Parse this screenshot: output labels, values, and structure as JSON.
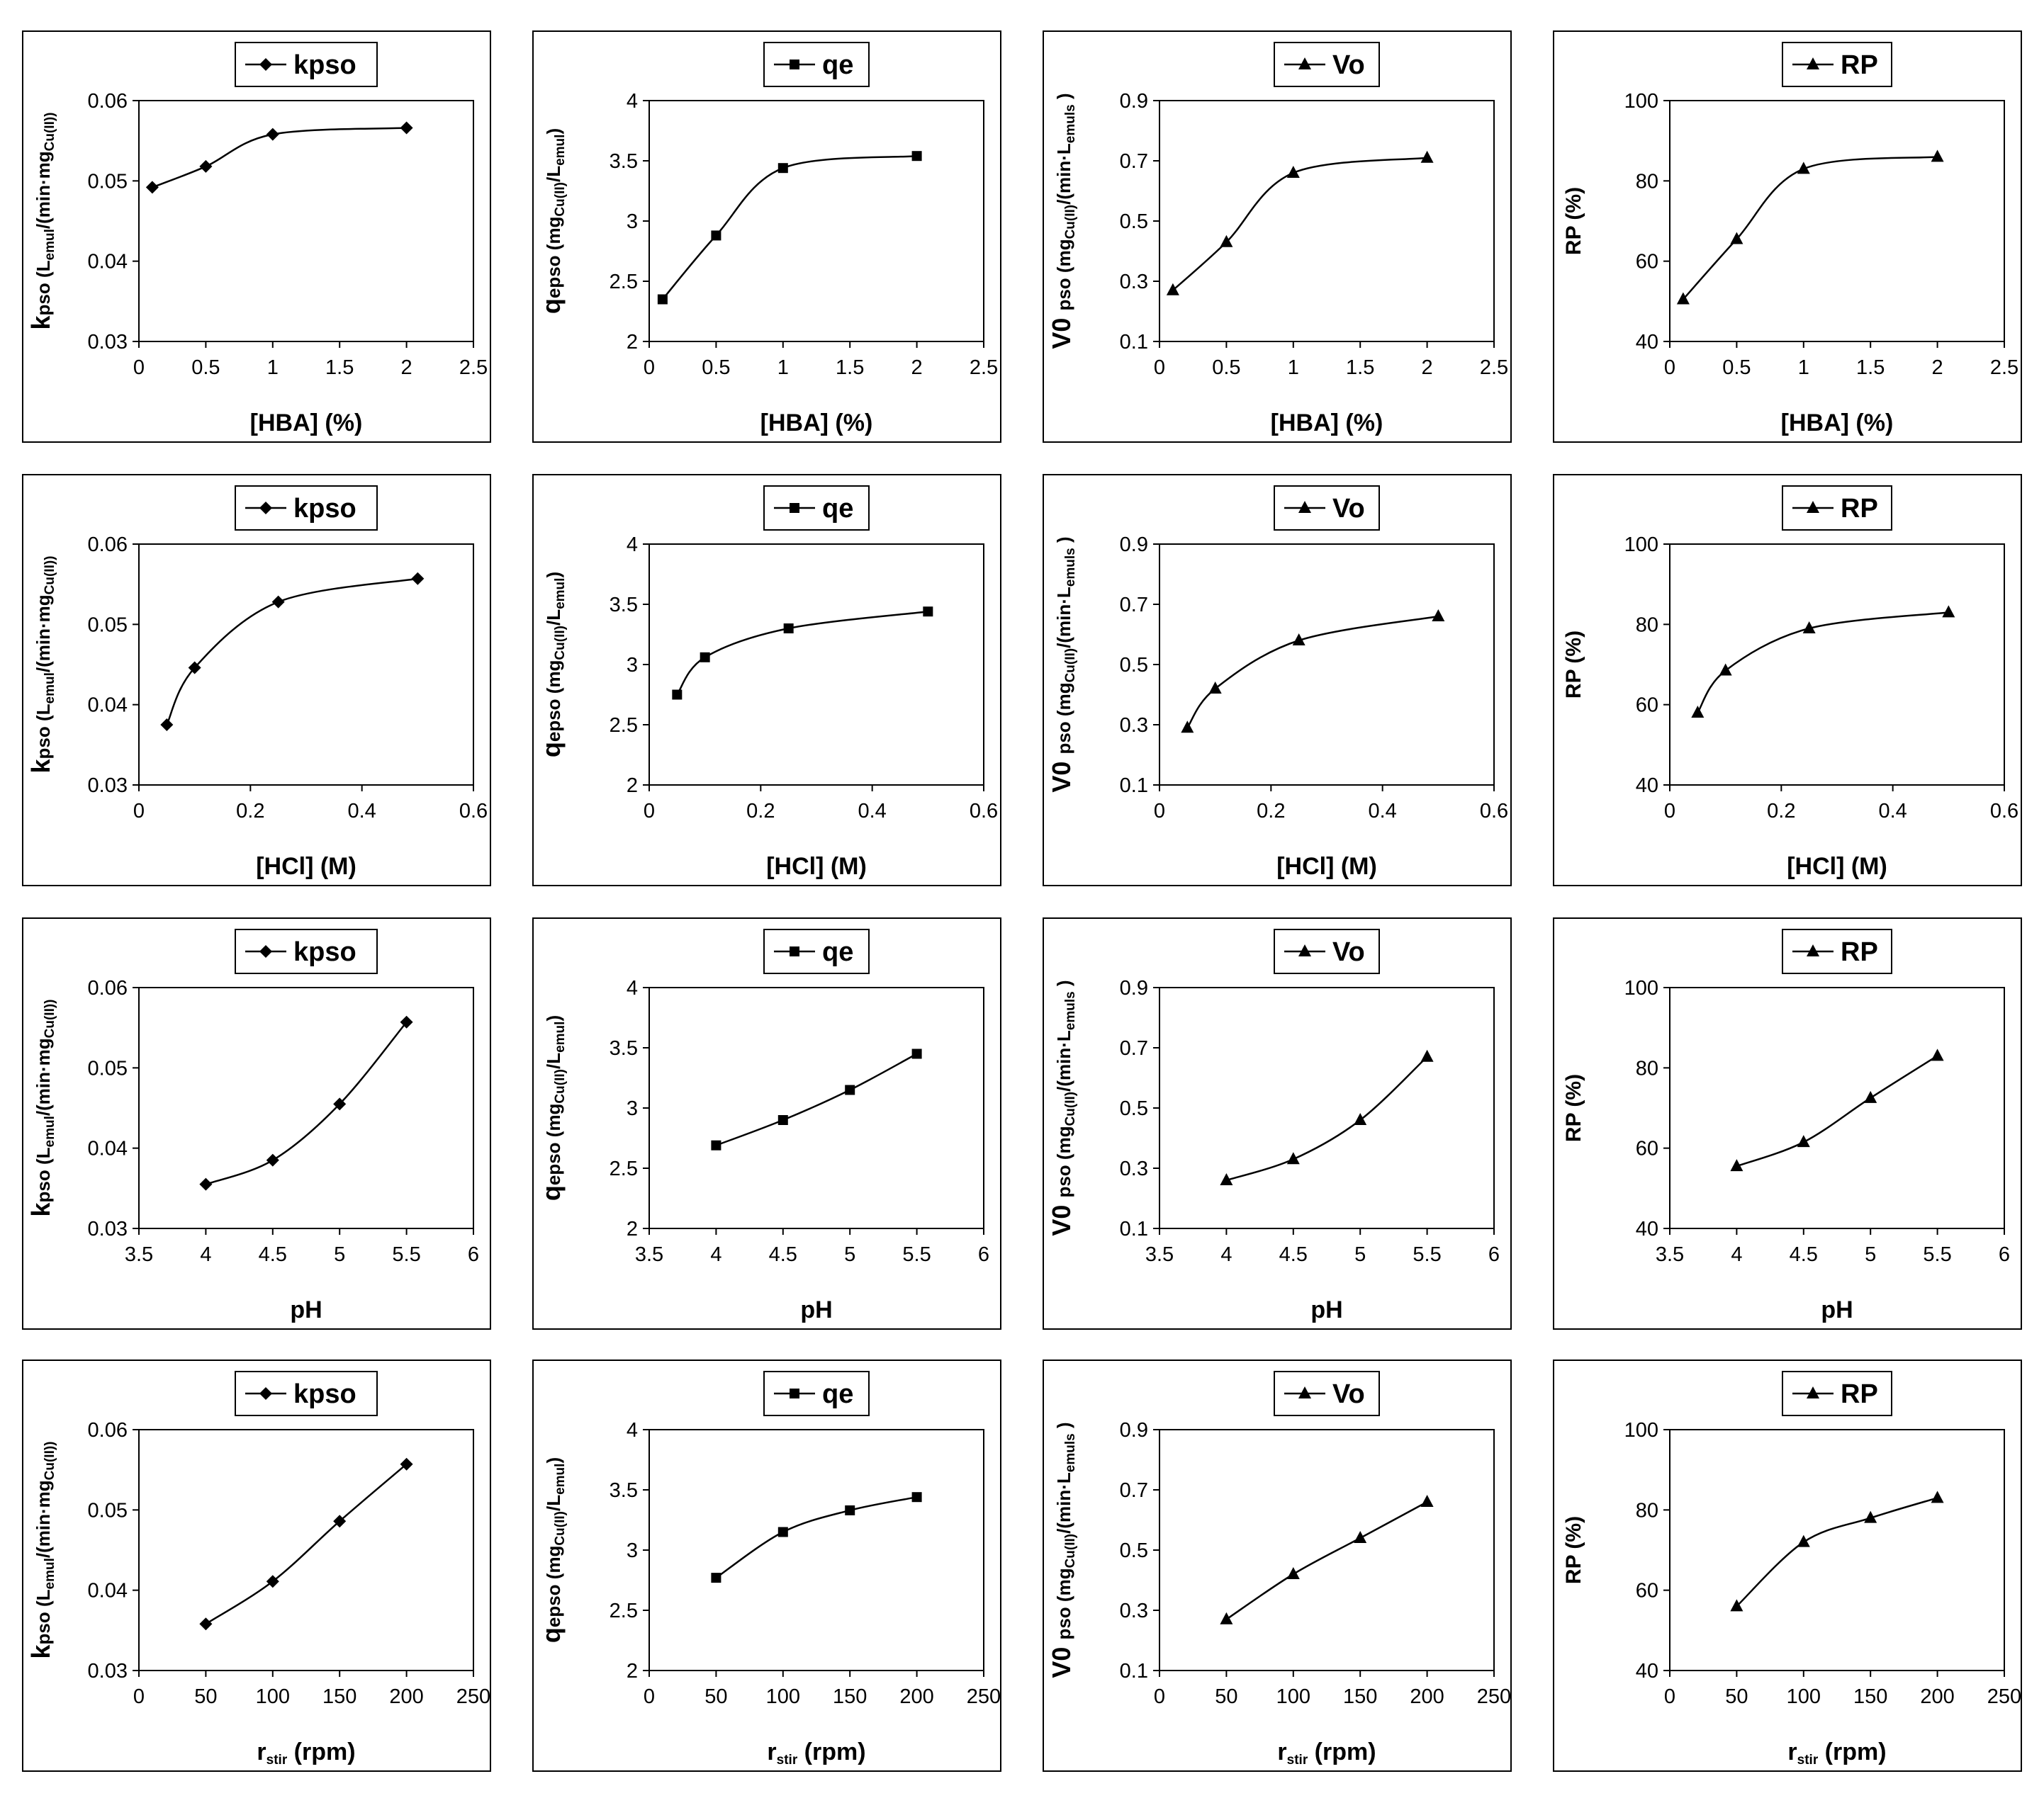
{
  "chart_data": [
    {
      "id": "hba-kpso",
      "type": "line",
      "legend": "kpso",
      "marker": "diamond",
      "x": [
        0.1,
        0.5,
        1,
        2
      ],
      "values": [
        0.0492,
        0.0518,
        0.0558,
        0.0566
      ],
      "xlim": [
        0,
        2.5
      ],
      "xticks": [
        "0",
        "0.5",
        "1",
        "1.5",
        "2",
        "2.5"
      ],
      "ylim": [
        0.03,
        0.06
      ],
      "yticks": [
        "0.03",
        "0.04",
        "0.05",
        "0.06"
      ],
      "xlabel": "[HBA] (%)",
      "ylabel": "kpso (Lemul/(min·mgCu(II))"
    },
    {
      "id": "hba-qe",
      "type": "line",
      "legend": "qe",
      "marker": "square",
      "x": [
        0.1,
        0.5,
        1,
        2
      ],
      "values": [
        2.35,
        2.88,
        3.44,
        3.54
      ],
      "xlim": [
        0,
        2.5
      ],
      "xticks": [
        "0",
        "0.5",
        "1",
        "1.5",
        "2",
        "2.5"
      ],
      "ylim": [
        2,
        4
      ],
      "yticks": [
        "2",
        "2.5",
        "3",
        "3.5",
        "4"
      ],
      "xlabel": "[HBA] (%)",
      "ylabel": "qepso (mgCu(II)/Lemul)"
    },
    {
      "id": "hba-vo",
      "type": "line",
      "legend": "Vo",
      "marker": "triangle",
      "x": [
        0.1,
        0.5,
        1,
        2
      ],
      "values": [
        0.27,
        0.43,
        0.66,
        0.71
      ],
      "xlim": [
        0,
        2.5
      ],
      "xticks": [
        "0",
        "0.5",
        "1",
        "1.5",
        "2",
        "2.5"
      ],
      "ylim": [
        0.1,
        0.9
      ],
      "yticks": [
        "0.1",
        "0.3",
        "0.5",
        "0.7",
        "0.9"
      ],
      "xlabel": "[HBA] (%)",
      "ylabel": "V0 pso (mgCu(II)/(min·Lemuls)"
    },
    {
      "id": "hba-rp",
      "type": "line",
      "legend": "RP",
      "marker": "triangle",
      "x": [
        0.1,
        0.5,
        1,
        2
      ],
      "values": [
        50.5,
        65.5,
        83,
        86
      ],
      "xlim": [
        0,
        2.5
      ],
      "xticks": [
        "0",
        "0.5",
        "1",
        "1.5",
        "2",
        "2.5"
      ],
      "ylim": [
        40,
        100
      ],
      "yticks": [
        "40",
        "60",
        "80",
        "100"
      ],
      "xlabel": "[HBA] (%)",
      "ylabel": "RP (%)"
    },
    {
      "id": "hcl-kpso",
      "type": "line",
      "legend": "kpso",
      "marker": "diamond",
      "x": [
        0.05,
        0.1,
        0.25,
        0.5
      ],
      "values": [
        0.0375,
        0.0446,
        0.0528,
        0.0557
      ],
      "xlim": [
        0,
        0.6
      ],
      "xticks": [
        "0",
        "0.2",
        "0.4",
        "0.6"
      ],
      "ylim": [
        0.03,
        0.06
      ],
      "yticks": [
        "0.03",
        "0.04",
        "0.05",
        "0.06"
      ],
      "xlabel": "[HCl] (M)",
      "ylabel": "kpso (Lemul/(min·mgCu(II))"
    },
    {
      "id": "hcl-qe",
      "type": "line",
      "legend": "qe",
      "marker": "square",
      "x": [
        0.05,
        0.1,
        0.25,
        0.5
      ],
      "values": [
        2.75,
        3.06,
        3.3,
        3.44
      ],
      "xlim": [
        0,
        0.6
      ],
      "xticks": [
        "0",
        "0.2",
        "0.4",
        "0.6"
      ],
      "ylim": [
        2,
        4
      ],
      "yticks": [
        "2",
        "2.5",
        "3",
        "3.5",
        "4"
      ],
      "xlabel": "[HCl] (M)",
      "ylabel": "qepso (mgCu(II)/Lemul)"
    },
    {
      "id": "hcl-vo",
      "type": "line",
      "legend": "Vo",
      "marker": "triangle",
      "x": [
        0.05,
        0.1,
        0.25,
        0.5
      ],
      "values": [
        0.29,
        0.42,
        0.58,
        0.66
      ],
      "xlim": [
        0,
        0.6
      ],
      "xticks": [
        "0",
        "0.2",
        "0.4",
        "0.6"
      ],
      "ylim": [
        0.1,
        0.9
      ],
      "yticks": [
        "0.1",
        "0.3",
        "0.5",
        "0.7",
        "0.9"
      ],
      "xlabel": "[HCl] (M)",
      "ylabel": "V0 pso (mgCu(II)/(min·Lemuls)"
    },
    {
      "id": "hcl-rp",
      "type": "line",
      "legend": "RP",
      "marker": "triangle",
      "x": [
        0.05,
        0.1,
        0.25,
        0.5
      ],
      "values": [
        58,
        68.5,
        79,
        83
      ],
      "xlim": [
        0,
        0.6
      ],
      "xticks": [
        "0",
        "0.2",
        "0.4",
        "0.6"
      ],
      "ylim": [
        40,
        100
      ],
      "yticks": [
        "40",
        "60",
        "80",
        "100"
      ],
      "xlabel": "[HCl] (M)",
      "ylabel": "RP (%)"
    },
    {
      "id": "ph-kpso",
      "type": "line",
      "legend": "kpso",
      "marker": "diamond",
      "x": [
        4,
        4.5,
        5,
        5.5
      ],
      "values": [
        0.0355,
        0.0385,
        0.0455,
        0.0557
      ],
      "xlim": [
        3.5,
        6
      ],
      "xticks": [
        "3.5",
        "4",
        "4.5",
        "5",
        "5.5",
        "6"
      ],
      "ylim": [
        0.03,
        0.06
      ],
      "yticks": [
        "0.03",
        "0.04",
        "0.05",
        "0.06"
      ],
      "xlabel": "pH",
      "ylabel": "kpso (Lemul/(min·mgCu(II))"
    },
    {
      "id": "ph-qe",
      "type": "line",
      "legend": "qe",
      "marker": "square",
      "x": [
        4,
        4.5,
        5,
        5.5
      ],
      "values": [
        2.69,
        2.9,
        3.15,
        3.45
      ],
      "xlim": [
        3.5,
        6
      ],
      "xticks": [
        "3.5",
        "4",
        "4.5",
        "5",
        "5.5",
        "6"
      ],
      "ylim": [
        2,
        4
      ],
      "yticks": [
        "2",
        "2.5",
        "3",
        "3.5",
        "4"
      ],
      "xlabel": "pH",
      "ylabel": "qepso (mgCu(II)/Lemul)"
    },
    {
      "id": "ph-vo",
      "type": "line",
      "legend": "Vo",
      "marker": "triangle",
      "x": [
        4,
        4.5,
        5,
        5.5
      ],
      "values": [
        0.26,
        0.33,
        0.46,
        0.67
      ],
      "xlim": [
        3.5,
        6
      ],
      "xticks": [
        "3.5",
        "4",
        "4.5",
        "5",
        "5.5",
        "6"
      ],
      "ylim": [
        0.1,
        0.9
      ],
      "yticks": [
        "0.1",
        "0.3",
        "0.5",
        "0.7",
        "0.9"
      ],
      "xlabel": "pH",
      "ylabel": "V0 pso (mgCu(II)/(min·Lemuls)"
    },
    {
      "id": "ph-rp",
      "type": "line",
      "legend": "RP",
      "marker": "triangle",
      "x": [
        4,
        4.5,
        5,
        5.5
      ],
      "values": [
        55.5,
        61.5,
        72.5,
        83
      ],
      "xlim": [
        3.5,
        6
      ],
      "xticks": [
        "3.5",
        "4",
        "4.5",
        "5",
        "5.5",
        "6"
      ],
      "ylim": [
        40,
        100
      ],
      "yticks": [
        "40",
        "60",
        "80",
        "100"
      ],
      "xlabel": "pH",
      "ylabel": "RP (%)"
    },
    {
      "id": "rpm-kpso",
      "type": "line",
      "legend": "kpso",
      "marker": "diamond",
      "x": [
        50,
        100,
        150,
        200
      ],
      "values": [
        0.0358,
        0.0411,
        0.0486,
        0.0557
      ],
      "xlim": [
        0,
        250
      ],
      "xticks": [
        "0",
        "50",
        "100",
        "150",
        "200",
        "250"
      ],
      "ylim": [
        0.03,
        0.06
      ],
      "yticks": [
        "0.03",
        "0.04",
        "0.05",
        "0.06"
      ],
      "xlabel": "rstir (rpm)",
      "ylabel": "kpso (Lemul/(min·mgCu(II))"
    },
    {
      "id": "rpm-qe",
      "type": "line",
      "legend": "qe",
      "marker": "square",
      "x": [
        50,
        100,
        150,
        200
      ],
      "values": [
        2.77,
        3.15,
        3.33,
        3.44
      ],
      "xlim": [
        0,
        250
      ],
      "xticks": [
        "0",
        "50",
        "100",
        "150",
        "200",
        "250"
      ],
      "ylim": [
        2,
        4
      ],
      "yticks": [
        "2",
        "2.5",
        "3",
        "3.5",
        "4"
      ],
      "xlabel": "rstir (rpm)",
      "ylabel": "qepso (mgCu(II)/Lemul)"
    },
    {
      "id": "rpm-vo",
      "type": "line",
      "legend": "Vo",
      "marker": "triangle",
      "x": [
        50,
        100,
        150,
        200
      ],
      "values": [
        0.27,
        0.42,
        0.54,
        0.66
      ],
      "xlim": [
        0,
        250
      ],
      "xticks": [
        "0",
        "50",
        "100",
        "150",
        "200",
        "250"
      ],
      "ylim": [
        0.1,
        0.9
      ],
      "yticks": [
        "0.1",
        "0.3",
        "0.5",
        "0.7",
        "0.9"
      ],
      "xlabel": "rstir (rpm)",
      "ylabel": "V0 pso (mgCu(II)/(min·Lemuls)"
    },
    {
      "id": "rpm-rp",
      "type": "line",
      "legend": "RP",
      "marker": "triangle",
      "x": [
        50,
        100,
        150,
        200
      ],
      "values": [
        56,
        72,
        78,
        83
      ],
      "xlim": [
        0,
        250
      ],
      "xticks": [
        "0",
        "50",
        "100",
        "150",
        "200",
        "250"
      ],
      "ylim": [
        40,
        100
      ],
      "yticks": [
        "40",
        "60",
        "80",
        "100"
      ],
      "xlabel": "rstir (rpm)",
      "ylabel": "RP (%)"
    }
  ]
}
